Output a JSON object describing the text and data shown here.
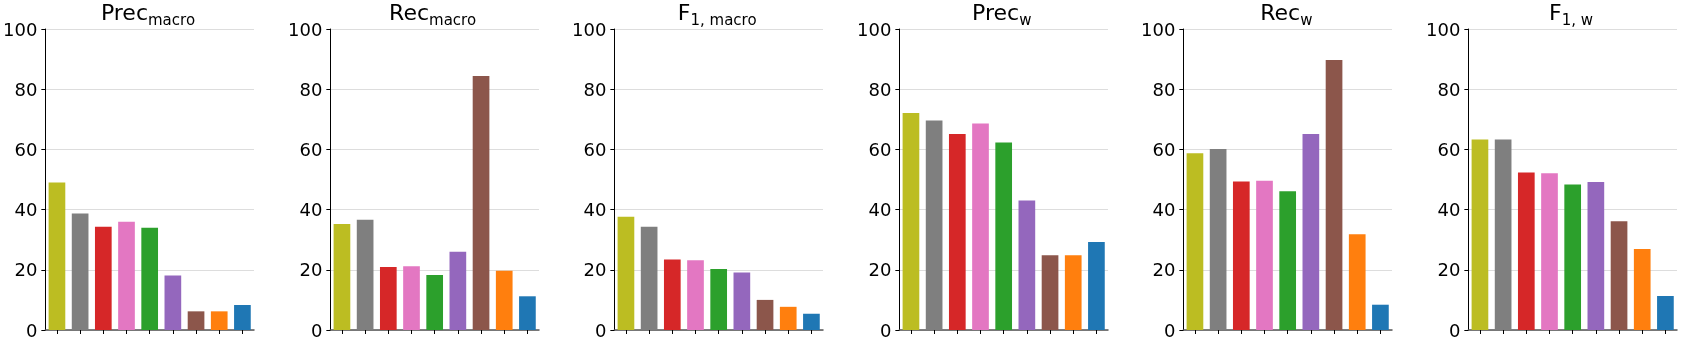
{
  "chart_data": [
    {
      "type": "bar",
      "title": "Prec$_{macro}$",
      "categories": [
        null,
        null,
        null,
        null,
        null,
        null,
        null,
        null,
        null
      ],
      "values": [
        49,
        38.7,
        34.3,
        36,
        34,
        18.1,
        6.2,
        6.2,
        8.3
      ],
      "colors": [
        "#bcbd22",
        "#7f7f7f",
        "#d62728",
        "#e377c2",
        "#2ca02c",
        "#9467bd",
        "#8c564b",
        "#ff7f0e",
        "#1f77b4"
      ],
      "ylim": [
        0,
        100
      ],
      "yticks": [
        0,
        20,
        40,
        60,
        80,
        100
      ],
      "grid": "y"
    },
    {
      "type": "bar",
      "title": "Rec$_{macro}$",
      "categories": [
        null,
        null,
        null,
        null,
        null,
        null,
        null,
        null,
        null
      ],
      "values": [
        35.2,
        36.6,
        20.9,
        21.2,
        18.3,
        26,
        84.4,
        19.7,
        11.2
      ],
      "colors": [
        "#bcbd22",
        "#7f7f7f",
        "#d62728",
        "#e377c2",
        "#2ca02c",
        "#9467bd",
        "#8c564b",
        "#ff7f0e",
        "#1f77b4"
      ],
      "ylim": [
        0,
        100
      ],
      "yticks": [
        0,
        20,
        40,
        60,
        80,
        100
      ],
      "grid": "y"
    },
    {
      "type": "bar",
      "title": "F$_{1, macro}$",
      "categories": [
        null,
        null,
        null,
        null,
        null,
        null,
        null,
        null,
        null
      ],
      "values": [
        37.6,
        34.3,
        23.4,
        23.2,
        20.3,
        19.1,
        10,
        7.7,
        5.4
      ],
      "colors": [
        "#bcbd22",
        "#7f7f7f",
        "#d62728",
        "#e377c2",
        "#2ca02c",
        "#9467bd",
        "#8c564b",
        "#ff7f0e",
        "#1f77b4"
      ],
      "ylim": [
        0,
        100
      ],
      "yticks": [
        0,
        20,
        40,
        60,
        80,
        100
      ],
      "grid": "y"
    },
    {
      "type": "bar",
      "title": "Prec$_{w}$",
      "categories": [
        null,
        null,
        null,
        null,
        null,
        null,
        null,
        null,
        null
      ],
      "values": [
        72.1,
        69.6,
        65.1,
        68.6,
        62.3,
        43,
        24.8,
        24.8,
        29.2
      ],
      "colors": [
        "#bcbd22",
        "#7f7f7f",
        "#d62728",
        "#e377c2",
        "#2ca02c",
        "#9467bd",
        "#8c564b",
        "#ff7f0e",
        "#1f77b4"
      ],
      "ylim": [
        0,
        100
      ],
      "yticks": [
        0,
        20,
        40,
        60,
        80,
        100
      ],
      "grid": "y"
    },
    {
      "type": "bar",
      "title": "Rec$_{w}$",
      "categories": [
        null,
        null,
        null,
        null,
        null,
        null,
        null,
        null,
        null
      ],
      "values": [
        58.7,
        60.1,
        49.3,
        49.6,
        46.1,
        65.1,
        89.7,
        31.8,
        8.4
      ],
      "colors": [
        "#bcbd22",
        "#7f7f7f",
        "#d62728",
        "#e377c2",
        "#2ca02c",
        "#9467bd",
        "#8c564b",
        "#ff7f0e",
        "#1f77b4"
      ],
      "ylim": [
        0,
        100
      ],
      "yticks": [
        0,
        20,
        40,
        60,
        80,
        100
      ],
      "grid": "y"
    },
    {
      "type": "bar",
      "title": "F$_{1, w}$",
      "categories": [
        null,
        null,
        null,
        null,
        null,
        null,
        null,
        null,
        null
      ],
      "values": [
        63.3,
        63.3,
        52.3,
        52.1,
        48.3,
        49.2,
        36.1,
        26.9,
        11.3
      ],
      "colors": [
        "#bcbd22",
        "#7f7f7f",
        "#d62728",
        "#e377c2",
        "#2ca02c",
        "#9467bd",
        "#8c564b",
        "#ff7f0e",
        "#1f77b4"
      ],
      "ylim": [
        0,
        100
      ],
      "yticks": [
        0,
        20,
        40,
        60,
        80,
        100
      ],
      "grid": "y"
    }
  ]
}
